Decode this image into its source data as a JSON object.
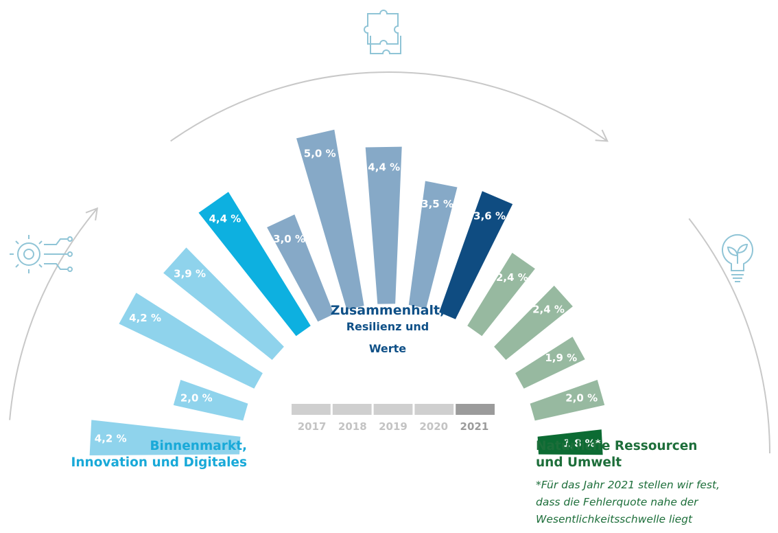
{
  "chart_data": {
    "type": "bar",
    "layout": "radial",
    "unit": "%",
    "years": [
      "2017",
      "2018",
      "2019",
      "2020",
      "2021"
    ],
    "groups": [
      {
        "name": "Binnenmarkt, Innovation und Digitales",
        "label_lines": [
          "Binnenmarkt,",
          "Innovation und Digitales"
        ],
        "icon": "gear-circuit-icon",
        "color_past": "#8fd3ec",
        "color_current": "#0db0e0",
        "values": [
          4.2,
          2.0,
          4.2,
          3.9,
          4.4
        ],
        "value_labels": [
          "4,2 %",
          "2,0 %",
          "4,2 %",
          "3,9 %",
          "4,4 %"
        ]
      },
      {
        "name": "Zusammenhalt, Resilienz und Werte",
        "label_lines": [
          "Zusammenhalt,",
          "Resilienz und",
          "Werte"
        ],
        "icon": "puzzle-icon",
        "color_past": "#86a9c7",
        "color_current": "#0f4c81",
        "values": [
          3.0,
          5.0,
          4.4,
          3.5,
          3.6
        ],
        "value_labels": [
          "3,0 %",
          "5,0 %",
          "4,4 %",
          "3,5 %",
          "3,6 %"
        ]
      },
      {
        "name": "Natürliche Ressourcen und Umwelt",
        "label_lines": [
          "Natürliche Ressourcen",
          "und Umwelt"
        ],
        "icon": "lightbulb-plant-icon",
        "color_past": "#97b9a0",
        "color_current": "#0c6b33",
        "values": [
          2.4,
          2.4,
          1.9,
          2.0,
          1.8
        ],
        "value_labels": [
          "2,4 %",
          "2,4 %",
          "1,9 %",
          "2,0 %",
          "1,8 %*"
        ]
      }
    ],
    "footnote_lines": [
      "*Für das Jahr 2021 stellen wir fest,",
      "dass die Fehlerquote nahe der",
      "Wesentlichkeitsschwelle  liegt"
    ],
    "legend": {
      "years": [
        "2017",
        "2018",
        "2019",
        "2020",
        "2021"
      ],
      "color_past": "#cfcfcf",
      "color_current": "#9b9b9b"
    },
    "colors": {
      "arc": "#c8c8c8",
      "icon": "#8fc4d6",
      "green_text": "#1d6e3a",
      "blue_text": "#19a9d8",
      "navy_text": "#0f5087"
    }
  }
}
